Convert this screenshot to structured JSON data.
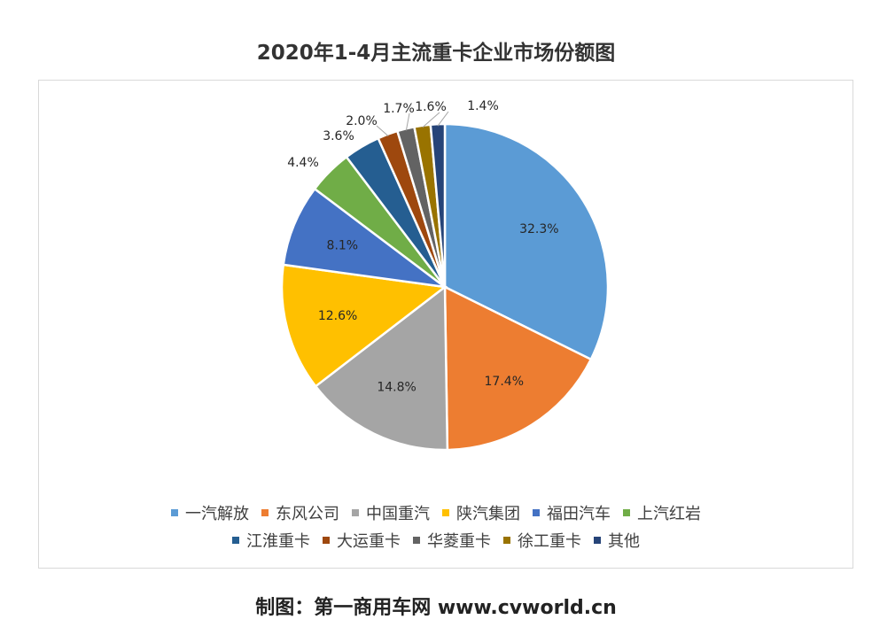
{
  "chart_data": {
    "type": "pie",
    "title": "2020年1-4月主流重卡企业市场份额图",
    "series": [
      {
        "name": "一汽解放",
        "value": 32.3,
        "label": "32.3%",
        "color": "#5b9bd5"
      },
      {
        "name": "东风公司",
        "value": 17.4,
        "label": "17.4%",
        "color": "#ed7d31"
      },
      {
        "name": "中国重汽",
        "value": 14.8,
        "label": "14.8%",
        "color": "#a5a5a5"
      },
      {
        "name": "陕汽集团",
        "value": 12.6,
        "label": "12.6%",
        "color": "#ffc000"
      },
      {
        "name": "福田汽车",
        "value": 8.1,
        "label": "8.1%",
        "color": "#4472c4"
      },
      {
        "name": "上汽红岩",
        "value": 4.4,
        "label": "4.4%",
        "color": "#70ad47"
      },
      {
        "name": "江淮重卡",
        "value": 3.6,
        "label": "3.6%",
        "color": "#255e91"
      },
      {
        "name": "大运重卡",
        "value": 2.0,
        "label": "2.0%",
        "color": "#9e480e"
      },
      {
        "name": "华菱重卡",
        "value": 1.7,
        "label": "1.7%",
        "color": "#636363"
      },
      {
        "name": "徐工重卡",
        "value": 1.6,
        "label": "1.6%",
        "color": "#997300"
      },
      {
        "name": "其他",
        "value": 1.4,
        "label": "1.4%",
        "color": "#264478"
      }
    ],
    "legend_position": "bottom"
  },
  "footer": "制图：第一商用车网 www.cvworld.cn"
}
